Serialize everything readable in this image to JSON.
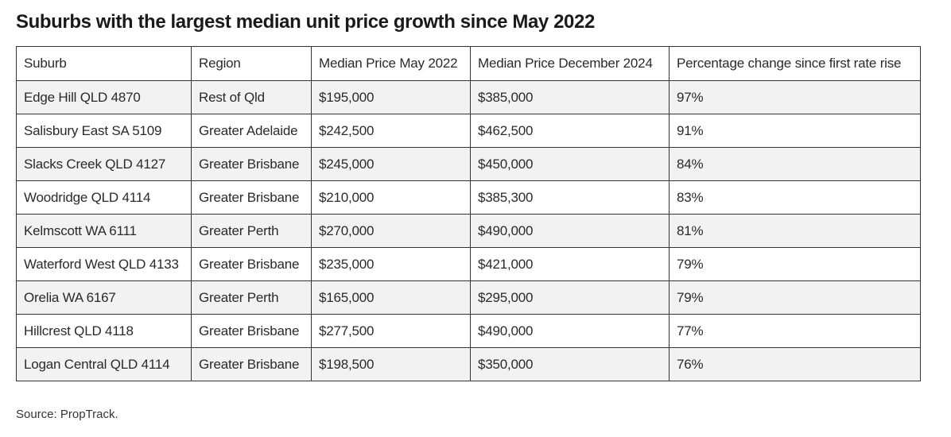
{
  "title": "Suburbs with the largest median unit price growth since May 2022",
  "table": {
    "headers": [
      "Suburb",
      "Region",
      "Median Price May 2022",
      "Median Price December 2024",
      "Percentage change since first rate rise"
    ],
    "rows": [
      [
        "Edge Hill QLD 4870",
        "Rest of Qld",
        "$195,000",
        "$385,000",
        "97%"
      ],
      [
        "Salisbury East SA 5109",
        "Greater Adelaide",
        "$242,500",
        "$462,500",
        "91%"
      ],
      [
        "Slacks Creek QLD 4127",
        "Greater Brisbane",
        "$245,000",
        "$450,000",
        "84%"
      ],
      [
        "Woodridge QLD 4114",
        "Greater Brisbane",
        "$210,000",
        "$385,300",
        "83%"
      ],
      [
        "Kelmscott WA 6111",
        "Greater Perth",
        "$270,000",
        "$490,000",
        "81%"
      ],
      [
        "Waterford West QLD 4133",
        "Greater Brisbane",
        "$235,000",
        "$421,000",
        "79%"
      ],
      [
        "Orelia WA 6167",
        "Greater Perth",
        "$165,000",
        "$295,000",
        "79%"
      ],
      [
        "Hillcrest QLD 4118",
        "Greater Brisbane",
        "$277,500",
        "$490,000",
        "77%"
      ],
      [
        "Logan Central QLD 4114",
        "Greater Brisbane",
        "$198,500",
        "$350,000",
        "76%"
      ]
    ]
  },
  "source": "Source: PropTrack."
}
